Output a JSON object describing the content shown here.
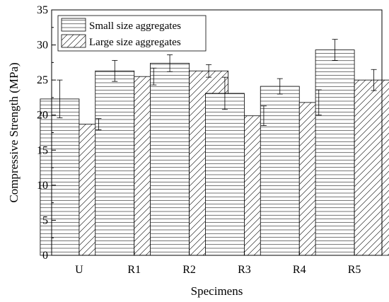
{
  "chart_data": {
    "type": "bar",
    "categories": [
      "U",
      "R1",
      "R2",
      "R3",
      "R4",
      "R5"
    ],
    "series": [
      {
        "name": "Small size aggregates",
        "values": [
          22.3,
          26.3,
          27.4,
          23.1,
          24.1,
          29.3
        ],
        "errors": [
          2.7,
          1.5,
          1.2,
          2.3,
          1.1,
          1.5
        ],
        "pattern": "horizontal-lines"
      },
      {
        "name": "Large size aggregates",
        "values": [
          18.7,
          25.5,
          26.3,
          19.9,
          21.8,
          25.0
        ],
        "errors": [
          0.8,
          1.2,
          0.9,
          1.4,
          1.8,
          1.5
        ],
        "pattern": "diagonal-lines"
      }
    ],
    "title": "",
    "xlabel": "Specimens",
    "ylabel": "Compressive Strength (MPa)",
    "ylim": [
      0,
      35
    ],
    "yticks": [
      0,
      5,
      10,
      15,
      20,
      25,
      30,
      35
    ],
    "grid": false,
    "legend_position": "top-left",
    "colors": {
      "stroke": "#000000",
      "fill": "#ffffff"
    }
  }
}
